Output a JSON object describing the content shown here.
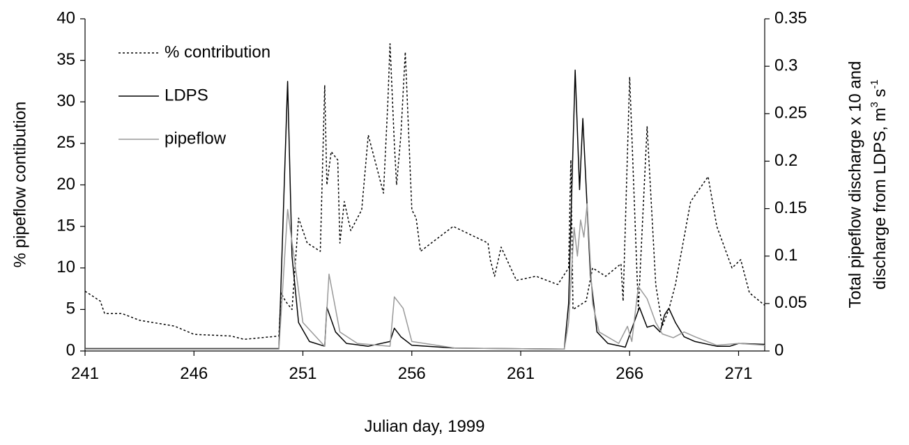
{
  "chart_data": {
    "type": "line",
    "xlabel": "Julian day, 1999",
    "ylabel": "% pipeflow contibution",
    "y2label": [
      "Total pipeflow discharge x 10 and",
      "discharge from LDPS, m",
      "3",
      " s",
      "-1"
    ],
    "xlim": [
      241,
      272.2
    ],
    "xticks": [
      241,
      246,
      251,
      256,
      261,
      266,
      271
    ],
    "ylim": [
      0,
      40
    ],
    "yticks": [
      0,
      5,
      10,
      15,
      20,
      25,
      30,
      35,
      40
    ],
    "y2lim": [
      0,
      0.35
    ],
    "y2ticks": [
      0,
      0.05,
      0.1,
      0.15,
      0.2,
      0.25,
      0.3,
      0.35
    ],
    "legend": "upper left",
    "series": [
      {
        "name": "% contribution",
        "color": "#000000",
        "dash": true,
        "axis": "y",
        "x": [
          241,
          241.7,
          241.9,
          242.7,
          243.5,
          245.1,
          246,
          247.7,
          248.3,
          249.9,
          250,
          250.2,
          250.5,
          250.8,
          251.2,
          251.8,
          252,
          252.1,
          252.3,
          252.6,
          252.7,
          252.9,
          253.2,
          253.7,
          254,
          254.4,
          254.7,
          254.9,
          255,
          255.2,
          255.3,
          255.5,
          255.7,
          256,
          256.2,
          256.4,
          257.9,
          259.5,
          259.6,
          259.8,
          260.1,
          260.8,
          261.7,
          262.7,
          263.2,
          263.3,
          263.4,
          264,
          264.3,
          264.9,
          265.6,
          265.7,
          266,
          266.4,
          266.8,
          267.2,
          267.5,
          267.8,
          268.1,
          268.8,
          269.6,
          270,
          270.7,
          271.1,
          271.5,
          272.2
        ],
        "values": [
          7.2,
          6,
          4.5,
          4.5,
          3.7,
          3,
          2,
          1.8,
          1.4,
          1.8,
          7,
          6,
          5,
          16,
          13,
          12,
          32,
          20,
          24,
          23,
          13,
          18,
          14.5,
          17,
          26,
          22,
          19,
          30,
          37,
          25,
          20,
          26,
          36,
          17,
          16,
          12,
          15,
          13,
          11,
          9,
          12.5,
          8.5,
          9,
          8,
          10,
          23,
          5,
          6,
          10,
          9,
          10.5,
          6,
          33,
          5,
          27,
          8,
          3,
          5,
          8,
          18,
          21,
          15,
          10,
          11,
          7,
          5.5
        ]
      },
      {
        "name": "LDPS",
        "color": "#000000",
        "dash": false,
        "axis": "y2",
        "x": [
          241,
          249.9,
          250.3,
          250.5,
          250.8,
          251.3,
          252,
          252.1,
          252.5,
          253,
          254,
          255,
          255.2,
          255.5,
          256,
          258,
          263,
          263.2,
          263.5,
          263.7,
          263.85,
          264.2,
          264.5,
          265,
          265.8,
          266.45,
          266.8,
          267.1,
          267.4,
          267.6,
          267.8,
          268.1,
          268.5,
          269,
          270,
          270.6,
          271,
          272.2
        ],
        "values": [
          0.0026,
          0.0026,
          0.284,
          0.1,
          0.03,
          0.01,
          0.005,
          0.046,
          0.02,
          0.008,
          0.005,
          0.01,
          0.024,
          0.015,
          0.006,
          0.003,
          0.002,
          0.05,
          0.296,
          0.17,
          0.245,
          0.08,
          0.02,
          0.008,
          0.004,
          0.046,
          0.025,
          0.027,
          0.02,
          0.038,
          0.045,
          0.03,
          0.015,
          0.01,
          0.005,
          0.005,
          0.008,
          0.007
        ]
      },
      {
        "name": "pipeflow",
        "color": "#999999",
        "dash": false,
        "axis": "y2",
        "x": [
          241,
          249.9,
          250.3,
          251,
          252,
          252.2,
          252.7,
          253.5,
          255,
          255.2,
          255.6,
          256,
          258,
          263,
          263.2,
          263.45,
          263.6,
          263.75,
          263.9,
          264.05,
          264.3,
          264.6,
          265.5,
          265.9,
          266.1,
          266.4,
          266.8,
          267.2,
          267.5,
          268,
          268.5,
          269,
          270,
          271,
          272.2
        ],
        "values": [
          0.002,
          0.002,
          0.149,
          0.03,
          0.005,
          0.081,
          0.02,
          0.008,
          0.005,
          0.057,
          0.045,
          0.01,
          0.003,
          0.002,
          0.03,
          0.13,
          0.1,
          0.138,
          0.12,
          0.155,
          0.05,
          0.02,
          0.008,
          0.026,
          0.01,
          0.068,
          0.055,
          0.03,
          0.018,
          0.014,
          0.02,
          0.015,
          0.006,
          0.008,
          0.006
        ]
      }
    ]
  }
}
